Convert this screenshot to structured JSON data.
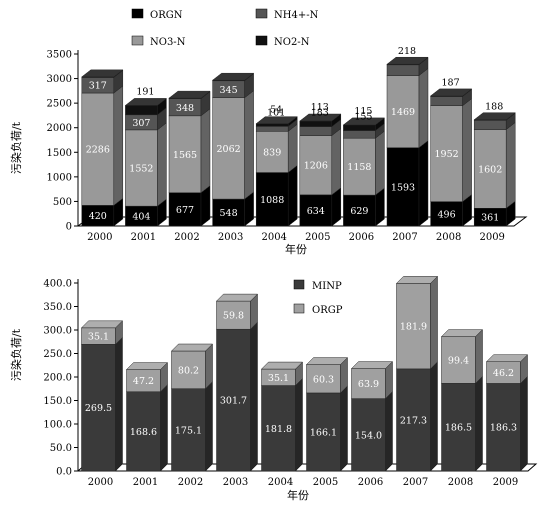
{
  "chart_data": [
    {
      "type": "bar",
      "stacked": true,
      "categories": [
        "2000",
        "2001",
        "2002",
        "2003",
        "2004",
        "2005",
        "2006",
        "2007",
        "2008",
        "2009"
      ],
      "series": [
        {
          "name": "ORGN",
          "color": "#000000",
          "values": [
            420,
            404,
            677,
            548,
            1088,
            634,
            629,
            1593,
            496,
            361
          ]
        },
        {
          "name": "NO3-N",
          "color": "#999999",
          "values": [
            2286,
            1552,
            1565,
            2062,
            839,
            1206,
            1158,
            1469,
            1952,
            1602
          ]
        },
        {
          "name": "NH4+-N",
          "color": "#555555",
          "values": [
            317,
            307,
            348,
            345,
            101,
            183,
            155,
            218,
            187,
            188
          ]
        },
        {
          "name": "NO2-N",
          "color": "#111111",
          "values": [
            12,
            191,
            12,
            12,
            54,
            113,
            115,
            12,
            12,
            12
          ]
        }
      ],
      "value_labels": [
        [
          "420",
          "404",
          "677",
          "548",
          "1088",
          "634",
          "629",
          "1593",
          "496",
          "361"
        ],
        [
          "2286",
          "1552",
          "1565",
          "2062",
          "839",
          "1206",
          "1158",
          "1469",
          "1952",
          "1602"
        ],
        [
          "317",
          "307",
          "348",
          "345",
          "101",
          "183",
          "155",
          "218",
          "187",
          "188"
        ],
        [
          "",
          "191",
          "",
          "",
          "54",
          "113",
          "115",
          "",
          "",
          ""
        ]
      ],
      "legend": [
        "ORGN",
        "NH4+-N",
        "NO3-N",
        "NO2-N"
      ],
      "xlabel": "年份",
      "ylabel": "污染负荷/t",
      "ylim": [
        0,
        3500
      ],
      "yticks": [
        "0",
        "500",
        "1000",
        "1500",
        "2000",
        "2500",
        "3000",
        "3500"
      ]
    },
    {
      "type": "bar",
      "stacked": true,
      "categories": [
        "2000",
        "2001",
        "2002",
        "2003",
        "2004",
        "2005",
        "2006",
        "2007",
        "2008",
        "2009"
      ],
      "series": [
        {
          "name": "MINP",
          "color": "#3a3a3a",
          "values": [
            269.5,
            168.6,
            175.1,
            301.7,
            181.8,
            166.1,
            154.0,
            217.3,
            186.5,
            186.3
          ]
        },
        {
          "name": "ORGP",
          "color": "#a0a0a0",
          "values": [
            35.1,
            47.2,
            80.2,
            59.8,
            35.1,
            60.3,
            63.9,
            181.9,
            99.4,
            46.2
          ]
        }
      ],
      "value_labels": [
        [
          "269.5",
          "168.6",
          "175.1",
          "301.7",
          "181.8",
          "166.1",
          "154.0",
          "217.3",
          "186.5",
          "186.3"
        ],
        [
          "35.1",
          "47.2",
          "80.2",
          "59.8",
          "35.1",
          "60.3",
          "63.9",
          "181.9",
          "99.4",
          "46.2"
        ]
      ],
      "legend": [
        "MINP",
        "ORGP"
      ],
      "xlabel": "年份",
      "ylabel": "污染负荷/t",
      "ylim": [
        0,
        400
      ],
      "yticks": [
        "0.0",
        "50.0",
        "100.0",
        "150.0",
        "200.0",
        "250.0",
        "300.0",
        "350.0",
        "400.0"
      ]
    }
  ]
}
